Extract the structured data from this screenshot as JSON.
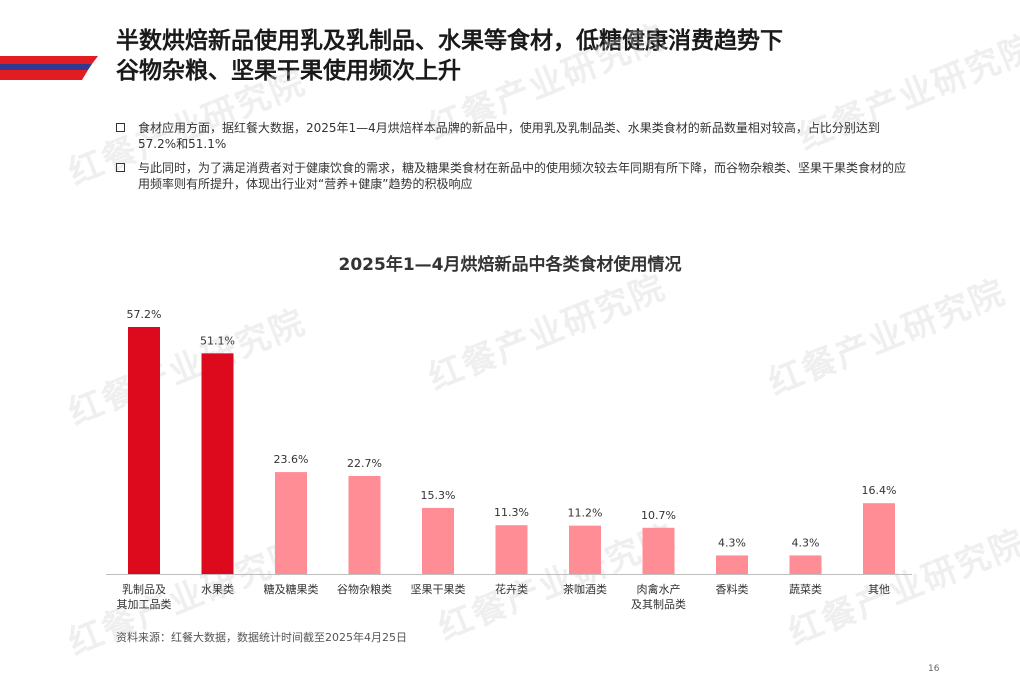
{
  "header": {
    "title_lines": [
      "半数烘焙新品使用乳及乳制品、水果等食材，低糖健康消费趋势下",
      "谷物杂粮、坚果干果使用频次上升"
    ]
  },
  "bullets": [
    "食材应用方面，据红餐大数据，2025年1—4月烘焙样本品牌的新品中，使用乳及乳制品类、水果类食材的新品数量相对较高，占比分别达到57.2%和51.1%",
    "与此同时，为了满足消费者对于健康饮食的需求，糖及糖果类食材在新品中的使用频次较去年同期有所下降，而谷物杂粮类、坚果干果类食材的应用频率则有所提升，体现出行业对“营养+健康”趋势的积极响应"
  ],
  "watermark_text": "红餐产业研究院",
  "colors": {
    "highlight": "#dd0a1e",
    "normal": "#ff8d96",
    "accent_red": "#e31b23",
    "accent_blue": "#2f3a8f"
  },
  "chart_data": {
    "type": "bar",
    "title": "2025年1—4月烘焙新品中各类食材使用情况",
    "categories": [
      [
        "乳制品及",
        "其加工品类"
      ],
      [
        "水果类"
      ],
      [
        "糖及糖果类"
      ],
      [
        "谷物杂粮类"
      ],
      [
        "坚果干果类"
      ],
      [
        "花卉类"
      ],
      [
        "茶咖酒类"
      ],
      [
        "肉禽水产",
        "及其制品类"
      ],
      [
        "香料类"
      ],
      [
        "蔬菜类"
      ],
      [
        "其他"
      ]
    ],
    "values": [
      57.2,
      51.1,
      23.6,
      22.7,
      15.3,
      11.3,
      11.2,
      10.7,
      4.3,
      4.3,
      16.4
    ],
    "value_labels": [
      "57.2%",
      "51.1%",
      "23.6%",
      "22.7%",
      "15.3%",
      "11.3%",
      "11.2%",
      "10.7%",
      "4.3%",
      "4.3%",
      "16.4%"
    ],
    "highlighted": [
      true,
      true,
      false,
      false,
      false,
      false,
      false,
      false,
      false,
      false,
      false
    ],
    "ylim": [
      0,
      57.2
    ],
    "grid": false,
    "legend": "none"
  },
  "footer": {
    "source": "资料来源：红餐大数据，数据统计时间截至2025年4月25日",
    "page_number": "16"
  }
}
